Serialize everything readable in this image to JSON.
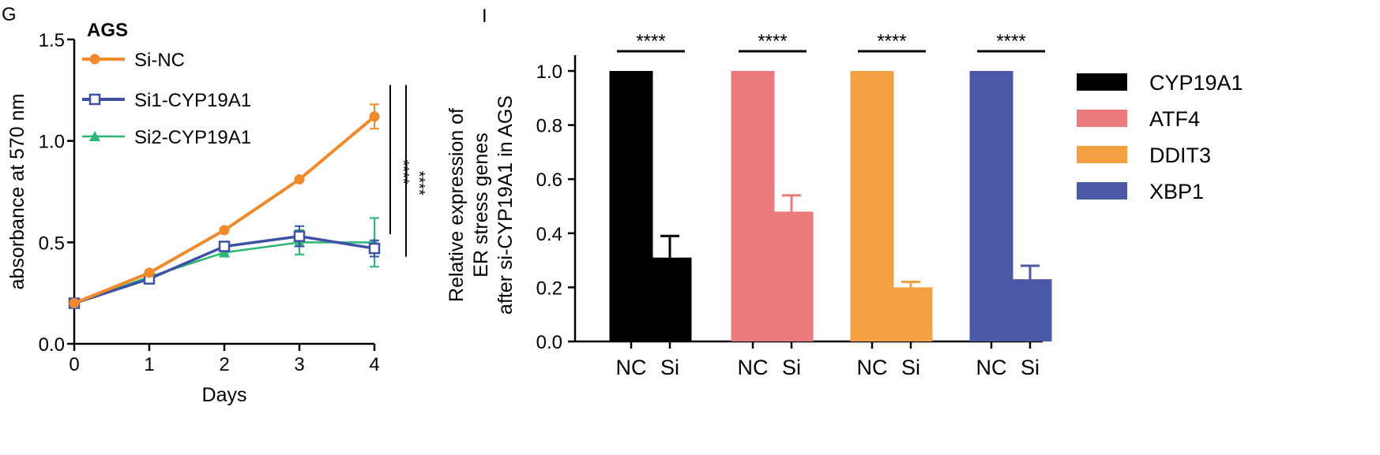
{
  "chart_data": [
    {
      "panel_label": "G",
      "type": "line",
      "title": "AGS",
      "xlabel": "Days",
      "ylabel": "absorbance at 570 nm",
      "x": [
        0,
        1,
        2,
        3,
        4
      ],
      "x_tick_labels": [
        "0",
        "1",
        "2",
        "3",
        "4"
      ],
      "xlim": [
        0,
        4
      ],
      "ylim": [
        0,
        1.5
      ],
      "y_ticks": [
        0.0,
        0.5,
        1.0,
        1.5
      ],
      "y_tick_labels": [
        "0.0",
        "0.5",
        "1.0",
        "1.5"
      ],
      "series": [
        {
          "name": "Si-NC",
          "color": "#F08A2C",
          "marker": "circle",
          "values": [
            0.2,
            0.35,
            0.56,
            0.81,
            1.12
          ],
          "errors": [
            0.01,
            0.01,
            0.01,
            0.01,
            0.06
          ]
        },
        {
          "name": "Si1-CYP19A1",
          "color": "#3F51A5",
          "marker": "square",
          "values": [
            0.2,
            0.32,
            0.48,
            0.53,
            0.47
          ],
          "errors": [
            0.01,
            0.01,
            0.02,
            0.05,
            0.04
          ]
        },
        {
          "name": "Si2-CYP19A1",
          "color": "#2BB673",
          "marker": "triangle",
          "values": [
            0.2,
            0.33,
            0.45,
            0.5,
            0.5
          ],
          "errors": [
            0.01,
            0.01,
            0.02,
            0.06,
            0.12
          ]
        }
      ],
      "significance": [
        {
          "label": "****",
          "comparison": "Si-NC vs Si1-CYP19A1"
        },
        {
          "label": "****",
          "comparison": "Si-NC vs Si2-CYP19A1"
        }
      ],
      "legend_position": "top-left"
    },
    {
      "panel_label": "I",
      "type": "bar",
      "ylabel_lines": [
        "Relative expression of",
        "ER stress genes",
        "after si-CYP19A1 in  AGS"
      ],
      "ylim": [
        0,
        1.0
      ],
      "y_ticks": [
        0.0,
        0.2,
        0.4,
        0.6,
        0.8,
        1.0
      ],
      "y_tick_labels": [
        "0.0",
        "0.2",
        "0.4",
        "0.6",
        "0.8",
        "1.0"
      ],
      "groups": [
        {
          "gene": "CYP19A1",
          "color": "#000000",
          "categories": [
            "NC",
            "Si"
          ],
          "values": [
            1.0,
            0.31
          ],
          "errors": [
            0,
            0.08
          ],
          "significance": "****"
        },
        {
          "gene": "ATF4",
          "color": "#EA7A7C",
          "categories": [
            "NC",
            "Si"
          ],
          "values": [
            1.0,
            0.48
          ],
          "errors": [
            0,
            0.06
          ],
          "significance": "****"
        },
        {
          "gene": "DDIT3",
          "color": "#F3A042",
          "categories": [
            "NC",
            "Si"
          ],
          "values": [
            1.0,
            0.2
          ],
          "errors": [
            0,
            0.02
          ],
          "significance": "****"
        },
        {
          "gene": "XBP1",
          "color": "#4B58A5",
          "categories": [
            "NC",
            "Si"
          ],
          "values": [
            1.0,
            0.23
          ],
          "errors": [
            0,
            0.05
          ],
          "significance": "****"
        }
      ],
      "legend": [
        "CYP19A1",
        "ATF4",
        "DDIT3",
        "XBP1"
      ],
      "legend_position": "right"
    }
  ]
}
